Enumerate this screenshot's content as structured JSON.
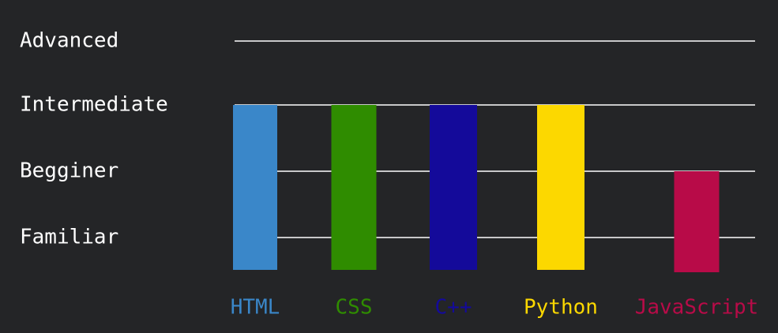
{
  "chart_data": {
    "type": "bar",
    "levels": [
      "Familiar",
      "Begginer",
      "Intermediate",
      "Advanced"
    ],
    "categories": [
      "HTML",
      "CSS",
      "C++",
      "Python",
      "JavaScript"
    ],
    "values": [
      3,
      3,
      3,
      3,
      2
    ],
    "colors": [
      "#3a87c9",
      "#2f8c00",
      "#140a9a",
      "#fcd800",
      "#b80b48"
    ],
    "ylim": [
      0,
      4
    ],
    "grid": true,
    "gridline_color": "#ffffff"
  },
  "style": {
    "background": "#242527",
    "text_color": "#ffffff"
  }
}
